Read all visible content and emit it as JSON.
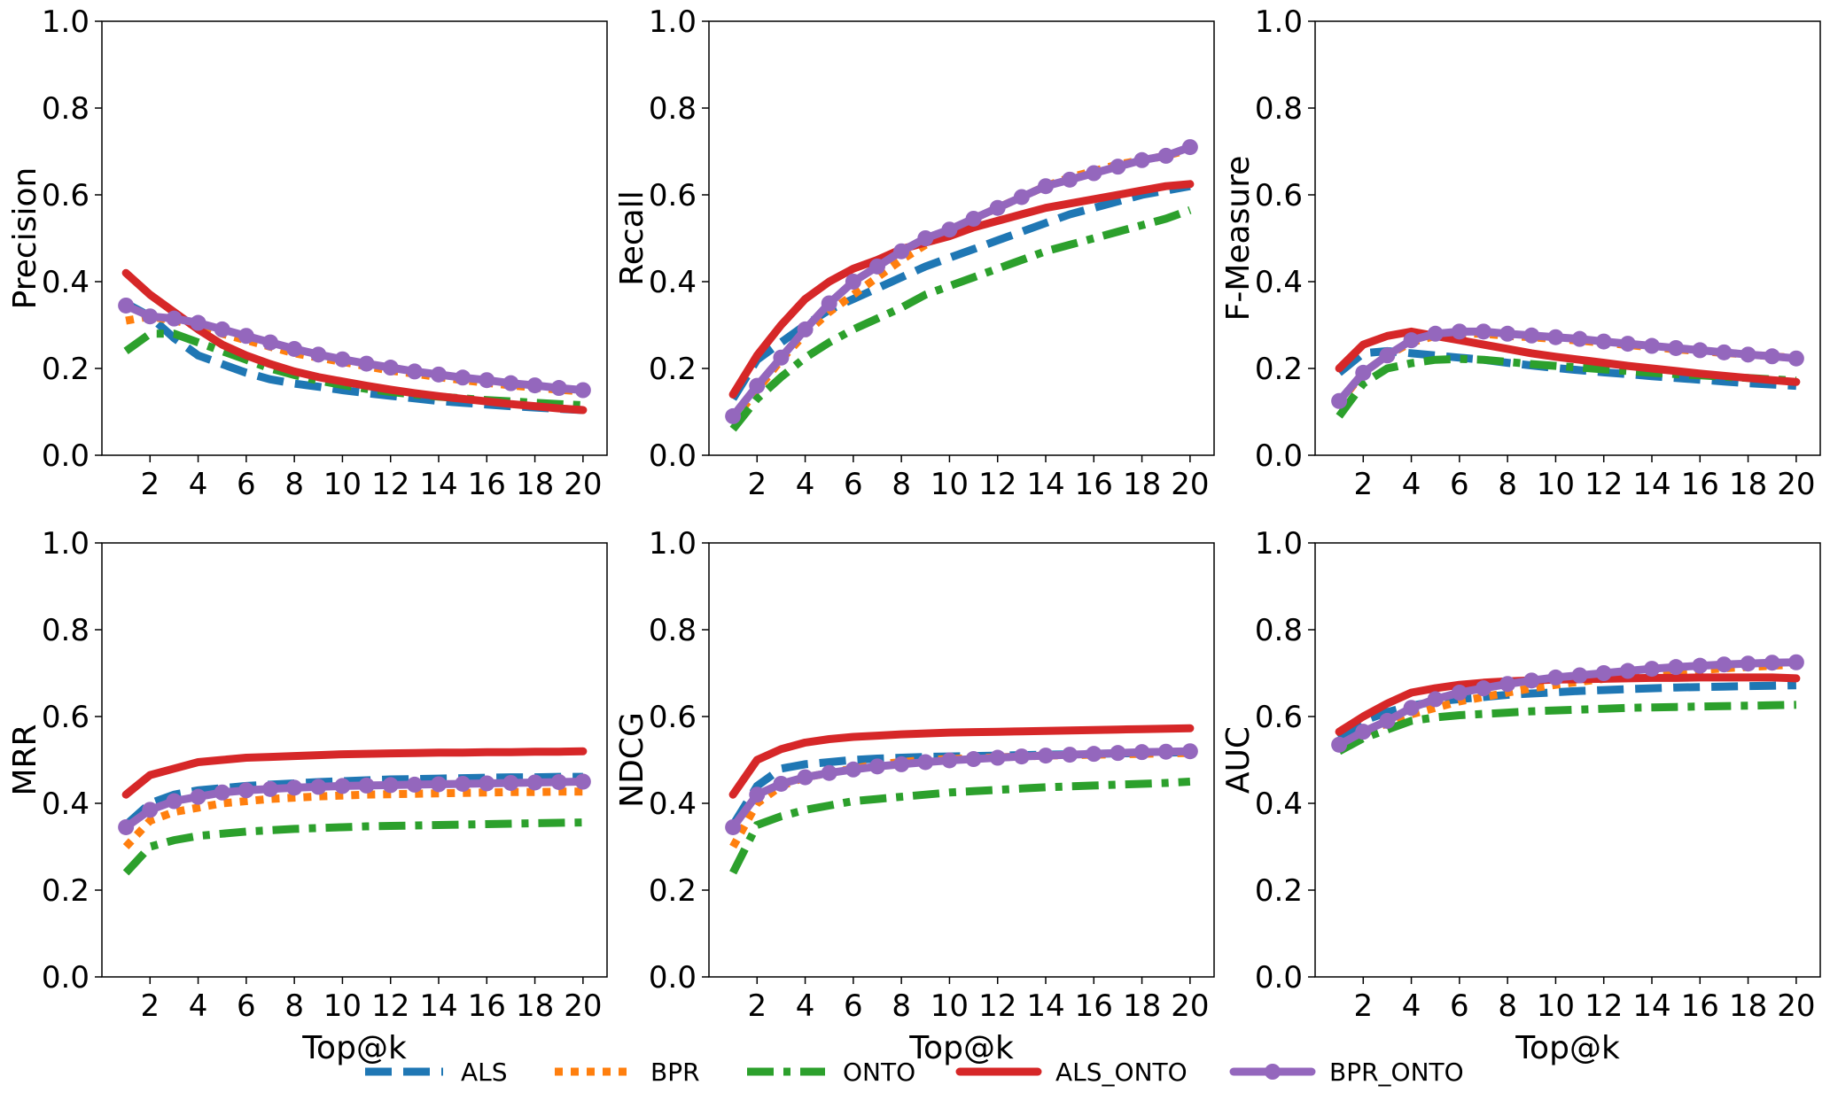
{
  "chart_data": [
    {
      "type": "line",
      "ylabel": "Precision",
      "xlabel": "",
      "x": [
        1,
        2,
        3,
        4,
        5,
        6,
        7,
        8,
        9,
        10,
        11,
        12,
        13,
        14,
        15,
        16,
        17,
        18,
        19,
        20
      ],
      "xticks": [
        2,
        4,
        6,
        8,
        10,
        12,
        14,
        16,
        18,
        20
      ],
      "ylim": [
        0,
        1
      ],
      "yticks": [
        "0.0",
        "0.2",
        "0.4",
        "0.6",
        "0.8",
        "1.0"
      ],
      "series": [
        {
          "name": "ALS",
          "values": [
            0.35,
            0.32,
            0.27,
            0.23,
            0.21,
            0.19,
            0.175,
            0.165,
            0.158,
            0.15,
            0.143,
            0.137,
            0.131,
            0.125,
            0.121,
            0.117,
            0.113,
            0.11,
            0.107,
            0.104
          ]
        },
        {
          "name": "BPR",
          "values": [
            0.31,
            0.32,
            0.31,
            0.3,
            0.28,
            0.265,
            0.25,
            0.235,
            0.225,
            0.215,
            0.205,
            0.195,
            0.188,
            0.18,
            0.173,
            0.167,
            0.161,
            0.156,
            0.151,
            0.147
          ]
        },
        {
          "name": "ONTO",
          "values": [
            0.24,
            0.28,
            0.28,
            0.26,
            0.24,
            0.22,
            0.2,
            0.185,
            0.172,
            0.162,
            0.153,
            0.146,
            0.14,
            0.135,
            0.131,
            0.127,
            0.124,
            0.121,
            0.118,
            0.115
          ]
        },
        {
          "name": "ALS_ONTO",
          "values": [
            0.42,
            0.37,
            0.33,
            0.29,
            0.255,
            0.23,
            0.21,
            0.193,
            0.18,
            0.17,
            0.16,
            0.151,
            0.143,
            0.136,
            0.13,
            0.124,
            0.118,
            0.113,
            0.108,
            0.104
          ]
        },
        {
          "name": "BPR_ONTO",
          "values": [
            0.345,
            0.32,
            0.315,
            0.305,
            0.29,
            0.275,
            0.26,
            0.245,
            0.232,
            0.221,
            0.211,
            0.202,
            0.193,
            0.186,
            0.179,
            0.173,
            0.166,
            0.161,
            0.155,
            0.15
          ]
        }
      ]
    },
    {
      "type": "line",
      "ylabel": "Recall",
      "xlabel": "",
      "x": [
        1,
        2,
        3,
        4,
        5,
        6,
        7,
        8,
        9,
        10,
        11,
        12,
        13,
        14,
        15,
        16,
        17,
        18,
        19,
        20
      ],
      "xticks": [
        2,
        4,
        6,
        8,
        10,
        12,
        14,
        16,
        18,
        20
      ],
      "ylim": [
        0,
        1
      ],
      "yticks": [
        "0.0",
        "0.2",
        "0.4",
        "0.6",
        "0.8",
        "1.0"
      ],
      "series": [
        {
          "name": "ALS",
          "values": [
            0.13,
            0.22,
            0.26,
            0.3,
            0.335,
            0.36,
            0.385,
            0.41,
            0.435,
            0.455,
            0.475,
            0.495,
            0.515,
            0.535,
            0.555,
            0.57,
            0.585,
            0.6,
            0.61,
            0.62
          ]
        },
        {
          "name": "BPR",
          "values": [
            0.08,
            0.15,
            0.22,
            0.28,
            0.33,
            0.37,
            0.41,
            0.45,
            0.485,
            0.515,
            0.545,
            0.57,
            0.595,
            0.62,
            0.64,
            0.655,
            0.67,
            0.68,
            0.69,
            0.705
          ]
        },
        {
          "name": "ONTO",
          "values": [
            0.06,
            0.13,
            0.18,
            0.225,
            0.26,
            0.29,
            0.315,
            0.34,
            0.37,
            0.39,
            0.41,
            0.43,
            0.45,
            0.47,
            0.485,
            0.5,
            0.515,
            0.53,
            0.545,
            0.565
          ]
        },
        {
          "name": "ALS_ONTO",
          "values": [
            0.14,
            0.23,
            0.3,
            0.36,
            0.4,
            0.43,
            0.45,
            0.475,
            0.49,
            0.505,
            0.525,
            0.54,
            0.555,
            0.57,
            0.58,
            0.59,
            0.6,
            0.61,
            0.62,
            0.625
          ]
        },
        {
          "name": "BPR_ONTO",
          "values": [
            0.09,
            0.16,
            0.225,
            0.29,
            0.35,
            0.4,
            0.435,
            0.47,
            0.5,
            0.52,
            0.545,
            0.57,
            0.595,
            0.62,
            0.635,
            0.65,
            0.665,
            0.68,
            0.69,
            0.71
          ]
        }
      ]
    },
    {
      "type": "line",
      "ylabel": "F-Measure",
      "xlabel": "",
      "x": [
        1,
        2,
        3,
        4,
        5,
        6,
        7,
        8,
        9,
        10,
        11,
        12,
        13,
        14,
        15,
        16,
        17,
        18,
        19,
        20
      ],
      "xticks": [
        2,
        4,
        6,
        8,
        10,
        12,
        14,
        16,
        18,
        20
      ],
      "ylim": [
        0,
        1
      ],
      "yticks": [
        "0.0",
        "0.2",
        "0.4",
        "0.6",
        "0.8",
        "1.0"
      ],
      "series": [
        {
          "name": "ALS",
          "values": [
            0.19,
            0.235,
            0.24,
            0.235,
            0.23,
            0.225,
            0.22,
            0.213,
            0.207,
            0.201,
            0.196,
            0.191,
            0.187,
            0.182,
            0.178,
            0.174,
            0.17,
            0.166,
            0.163,
            0.16
          ]
        },
        {
          "name": "BPR",
          "values": [
            0.12,
            0.19,
            0.23,
            0.26,
            0.275,
            0.28,
            0.28,
            0.275,
            0.272,
            0.268,
            0.264,
            0.259,
            0.254,
            0.249,
            0.244,
            0.24,
            0.236,
            0.232,
            0.228,
            0.224
          ]
        },
        {
          "name": "ONTO",
          "values": [
            0.09,
            0.165,
            0.2,
            0.212,
            0.22,
            0.222,
            0.22,
            0.215,
            0.21,
            0.206,
            0.202,
            0.198,
            0.194,
            0.19,
            0.187,
            0.184,
            0.181,
            0.178,
            0.175,
            0.172
          ]
        },
        {
          "name": "ALS_ONTO",
          "values": [
            0.2,
            0.255,
            0.275,
            0.285,
            0.275,
            0.265,
            0.255,
            0.245,
            0.235,
            0.227,
            0.22,
            0.213,
            0.206,
            0.2,
            0.194,
            0.188,
            0.183,
            0.178,
            0.173,
            0.169
          ]
        },
        {
          "name": "BPR_ONTO",
          "values": [
            0.125,
            0.19,
            0.23,
            0.265,
            0.28,
            0.285,
            0.285,
            0.28,
            0.276,
            0.272,
            0.268,
            0.262,
            0.257,
            0.252,
            0.247,
            0.242,
            0.237,
            0.232,
            0.228,
            0.223
          ]
        }
      ]
    },
    {
      "type": "line",
      "ylabel": "MRR",
      "xlabel": "Top@k",
      "x": [
        1,
        2,
        3,
        4,
        5,
        6,
        7,
        8,
        9,
        10,
        11,
        12,
        13,
        14,
        15,
        16,
        17,
        18,
        19,
        20
      ],
      "xticks": [
        2,
        4,
        6,
        8,
        10,
        12,
        14,
        16,
        18,
        20
      ],
      "ylim": [
        0,
        1
      ],
      "yticks": [
        "0.0",
        "0.2",
        "0.4",
        "0.6",
        "0.8",
        "1.0"
      ],
      "series": [
        {
          "name": "ALS",
          "values": [
            0.35,
            0.4,
            0.42,
            0.43,
            0.435,
            0.44,
            0.443,
            0.446,
            0.449,
            0.451,
            0.453,
            0.455,
            0.456,
            0.457,
            0.458,
            0.459,
            0.46,
            0.46,
            0.461,
            0.461
          ]
        },
        {
          "name": "BPR",
          "values": [
            0.3,
            0.36,
            0.38,
            0.39,
            0.4,
            0.405,
            0.41,
            0.413,
            0.416,
            0.418,
            0.42,
            0.421,
            0.422,
            0.423,
            0.424,
            0.425,
            0.426,
            0.426,
            0.427,
            0.427
          ]
        },
        {
          "name": "ONTO",
          "values": [
            0.24,
            0.3,
            0.315,
            0.325,
            0.33,
            0.335,
            0.338,
            0.341,
            0.343,
            0.345,
            0.347,
            0.348,
            0.349,
            0.35,
            0.351,
            0.352,
            0.353,
            0.354,
            0.355,
            0.356
          ]
        },
        {
          "name": "ALS_ONTO",
          "values": [
            0.42,
            0.465,
            0.48,
            0.495,
            0.5,
            0.505,
            0.507,
            0.509,
            0.511,
            0.513,
            0.514,
            0.515,
            0.516,
            0.517,
            0.517,
            0.518,
            0.518,
            0.519,
            0.519,
            0.52
          ]
        },
        {
          "name": "BPR_ONTO",
          "values": [
            0.345,
            0.385,
            0.405,
            0.415,
            0.425,
            0.43,
            0.433,
            0.436,
            0.438,
            0.44,
            0.441,
            0.442,
            0.443,
            0.444,
            0.445,
            0.446,
            0.447,
            0.448,
            0.449,
            0.45
          ]
        }
      ]
    },
    {
      "type": "line",
      "ylabel": "NDCG",
      "xlabel": "Top@k",
      "x": [
        1,
        2,
        3,
        4,
        5,
        6,
        7,
        8,
        9,
        10,
        11,
        12,
        13,
        14,
        15,
        16,
        17,
        18,
        19,
        20
      ],
      "xticks": [
        2,
        4,
        6,
        8,
        10,
        12,
        14,
        16,
        18,
        20
      ],
      "ylim": [
        0,
        1
      ],
      "yticks": [
        "0.0",
        "0.2",
        "0.4",
        "0.6",
        "0.8",
        "1.0"
      ],
      "series": [
        {
          "name": "ALS",
          "values": [
            0.35,
            0.44,
            0.48,
            0.49,
            0.495,
            0.5,
            0.503,
            0.505,
            0.507,
            0.508,
            0.509,
            0.51,
            0.511,
            0.512,
            0.513,
            0.514,
            0.515,
            0.516,
            0.517,
            0.518
          ]
        },
        {
          "name": "BPR",
          "values": [
            0.3,
            0.4,
            0.44,
            0.46,
            0.47,
            0.48,
            0.49,
            0.495,
            0.5,
            0.502,
            0.504,
            0.506,
            0.508,
            0.51,
            0.511,
            0.512,
            0.513,
            0.514,
            0.515,
            0.516
          ]
        },
        {
          "name": "ONTO",
          "values": [
            0.24,
            0.35,
            0.37,
            0.385,
            0.395,
            0.405,
            0.41,
            0.415,
            0.42,
            0.425,
            0.428,
            0.431,
            0.434,
            0.437,
            0.439,
            0.441,
            0.443,
            0.445,
            0.447,
            0.45
          ]
        },
        {
          "name": "ALS_ONTO",
          "values": [
            0.42,
            0.5,
            0.525,
            0.54,
            0.548,
            0.553,
            0.556,
            0.559,
            0.561,
            0.563,
            0.564,
            0.565,
            0.566,
            0.567,
            0.568,
            0.569,
            0.57,
            0.571,
            0.572,
            0.573
          ]
        },
        {
          "name": "BPR_ONTO",
          "values": [
            0.345,
            0.42,
            0.445,
            0.46,
            0.47,
            0.478,
            0.485,
            0.49,
            0.495,
            0.499,
            0.502,
            0.505,
            0.508,
            0.51,
            0.512,
            0.514,
            0.516,
            0.518,
            0.519,
            0.52
          ]
        }
      ]
    },
    {
      "type": "line",
      "ylabel": "AUC",
      "xlabel": "Top@k",
      "x": [
        1,
        2,
        3,
        4,
        5,
        6,
        7,
        8,
        9,
        10,
        11,
        12,
        13,
        14,
        15,
        16,
        17,
        18,
        19,
        20
      ],
      "xticks": [
        2,
        4,
        6,
        8,
        10,
        12,
        14,
        16,
        18,
        20
      ],
      "ylim": [
        0,
        1
      ],
      "yticks": [
        "0.0",
        "0.2",
        "0.4",
        "0.6",
        "0.8",
        "1.0"
      ],
      "series": [
        {
          "name": "ALS",
          "values": [
            0.55,
            0.59,
            0.61,
            0.625,
            0.635,
            0.64,
            0.645,
            0.65,
            0.653,
            0.656,
            0.659,
            0.661,
            0.663,
            0.665,
            0.667,
            0.668,
            0.669,
            0.67,
            0.671,
            0.672
          ]
        },
        {
          "name": "BPR",
          "values": [
            0.53,
            0.56,
            0.585,
            0.605,
            0.62,
            0.635,
            0.645,
            0.655,
            0.665,
            0.673,
            0.68,
            0.687,
            0.693,
            0.698,
            0.703,
            0.707,
            0.711,
            0.714,
            0.717,
            0.72
          ]
        },
        {
          "name": "ONTO",
          "values": [
            0.52,
            0.55,
            0.57,
            0.59,
            0.598,
            0.603,
            0.606,
            0.609,
            0.612,
            0.614,
            0.616,
            0.618,
            0.62,
            0.621,
            0.622,
            0.623,
            0.624,
            0.625,
            0.626,
            0.627
          ]
        },
        {
          "name": "ALS_ONTO",
          "values": [
            0.565,
            0.6,
            0.63,
            0.655,
            0.665,
            0.673,
            0.678,
            0.681,
            0.683,
            0.685,
            0.686,
            0.687,
            0.688,
            0.689,
            0.689,
            0.69,
            0.69,
            0.69,
            0.69,
            0.688
          ]
        },
        {
          "name": "BPR_ONTO",
          "values": [
            0.535,
            0.565,
            0.59,
            0.62,
            0.64,
            0.655,
            0.665,
            0.675,
            0.683,
            0.69,
            0.695,
            0.7,
            0.705,
            0.71,
            0.714,
            0.717,
            0.72,
            0.722,
            0.724,
            0.725
          ]
        }
      ]
    }
  ],
  "legend": {
    "placement": "bottom",
    "items": [
      {
        "name": "ALS",
        "color": "#1f77b4",
        "style": "dashed"
      },
      {
        "name": "BPR",
        "color": "#ff7f0e",
        "style": "dotted"
      },
      {
        "name": "ONTO",
        "color": "#2ca02c",
        "style": "dashdot"
      },
      {
        "name": "ALS_ONTO",
        "color": "#d62728",
        "style": "solid"
      },
      {
        "name": "BPR_ONTO",
        "color": "#9467bd",
        "style": "solid-markers"
      }
    ]
  }
}
